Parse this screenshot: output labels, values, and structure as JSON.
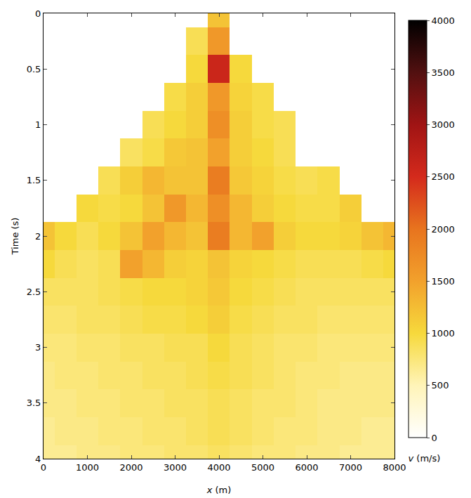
{
  "chart_data": {
    "type": "heatmap",
    "x_label": "x (m)",
    "y_label": "Time (s)",
    "x": [
      0,
      500,
      1000,
      1500,
      2000,
      2500,
      3000,
      3500,
      4000,
      4500,
      5000,
      5500,
      6000,
      6500,
      7000,
      7500,
      8000
    ],
    "y": [
      0,
      0.25,
      0.5,
      0.75,
      1,
      1.25,
      1.5,
      1.75,
      2,
      2.25,
      2.5,
      2.75,
      3,
      3.25,
      3.5,
      3.75,
      4
    ],
    "cells": [
      [
        null,
        null,
        null,
        null,
        null,
        null,
        null,
        null,
        1200,
        null,
        null,
        null,
        null,
        null,
        null,
        null,
        null
      ],
      [
        null,
        null,
        null,
        null,
        null,
        null,
        null,
        900,
        1600,
        null,
        null,
        null,
        null,
        null,
        null,
        null,
        null
      ],
      [
        null,
        null,
        null,
        null,
        null,
        null,
        null,
        1000,
        2600,
        1000,
        null,
        null,
        null,
        null,
        null,
        null,
        null
      ],
      [
        null,
        null,
        null,
        null,
        null,
        null,
        950,
        1100,
        1600,
        1050,
        950,
        null,
        null,
        null,
        null,
        null,
        null
      ],
      [
        null,
        null,
        null,
        null,
        null,
        900,
        1000,
        1100,
        1700,
        1100,
        950,
        900,
        null,
        null,
        null,
        null,
        null
      ],
      [
        null,
        null,
        null,
        null,
        850,
        950,
        1150,
        1200,
        1500,
        1100,
        1000,
        900,
        null,
        null,
        null,
        null,
        null
      ],
      [
        null,
        null,
        null,
        900,
        1100,
        1300,
        1200,
        1200,
        1900,
        1150,
        1050,
        950,
        900,
        950,
        null,
        null,
        null
      ],
      [
        null,
        null,
        1000,
        950,
        1000,
        1200,
        1600,
        1300,
        1700,
        1300,
        1100,
        1000,
        950,
        950,
        1100,
        null,
        null
      ],
      [
        1200,
        1000,
        900,
        1000,
        1200,
        1500,
        1300,
        1200,
        1900,
        1300,
        1500,
        1100,
        1000,
        1000,
        1050,
        1200,
        1300
      ],
      [
        1000,
        900,
        850,
        900,
        1500,
        1300,
        1100,
        1050,
        1200,
        1050,
        1000,
        950,
        900,
        900,
        900,
        950,
        1000
      ],
      [
        850,
        850,
        850,
        900,
        950,
        1000,
        1000,
        1050,
        1150,
        1000,
        950,
        900,
        850,
        850,
        850,
        850,
        850
      ],
      [
        800,
        800,
        850,
        850,
        900,
        950,
        950,
        1000,
        1100,
        950,
        900,
        850,
        850,
        800,
        800,
        800,
        800
      ],
      [
        750,
        750,
        800,
        800,
        850,
        850,
        900,
        900,
        1000,
        900,
        850,
        800,
        800,
        750,
        750,
        750,
        750
      ],
      [
        700,
        750,
        750,
        800,
        800,
        850,
        850,
        900,
        950,
        900,
        850,
        800,
        750,
        750,
        700,
        700,
        700
      ],
      [
        700,
        700,
        750,
        750,
        800,
        800,
        850,
        850,
        900,
        850,
        800,
        800,
        750,
        700,
        700,
        700,
        700
      ],
      [
        650,
        700,
        700,
        750,
        750,
        800,
        800,
        850,
        900,
        850,
        800,
        750,
        750,
        700,
        700,
        650,
        650
      ],
      [
        650,
        650,
        700,
        700,
        750,
        750,
        800,
        800,
        850,
        800,
        750,
        750,
        700,
        700,
        650,
        650,
        650
      ]
    ],
    "xlim": [
      0,
      8000
    ],
    "xticks": [
      0,
      1000,
      2000,
      3000,
      4000,
      5000,
      6000,
      7000,
      8000
    ],
    "ylim": [
      4,
      0
    ],
    "yticks": [
      0,
      0.5,
      1,
      1.5,
      2,
      2.5,
      3,
      3.5,
      4
    ],
    "colorbar": {
      "title": "v (m/s)",
      "range": [
        0,
        4000
      ],
      "ticks": [
        0,
        500,
        1000,
        1500,
        2000,
        2500,
        3000,
        3500,
        4000
      ]
    }
  }
}
